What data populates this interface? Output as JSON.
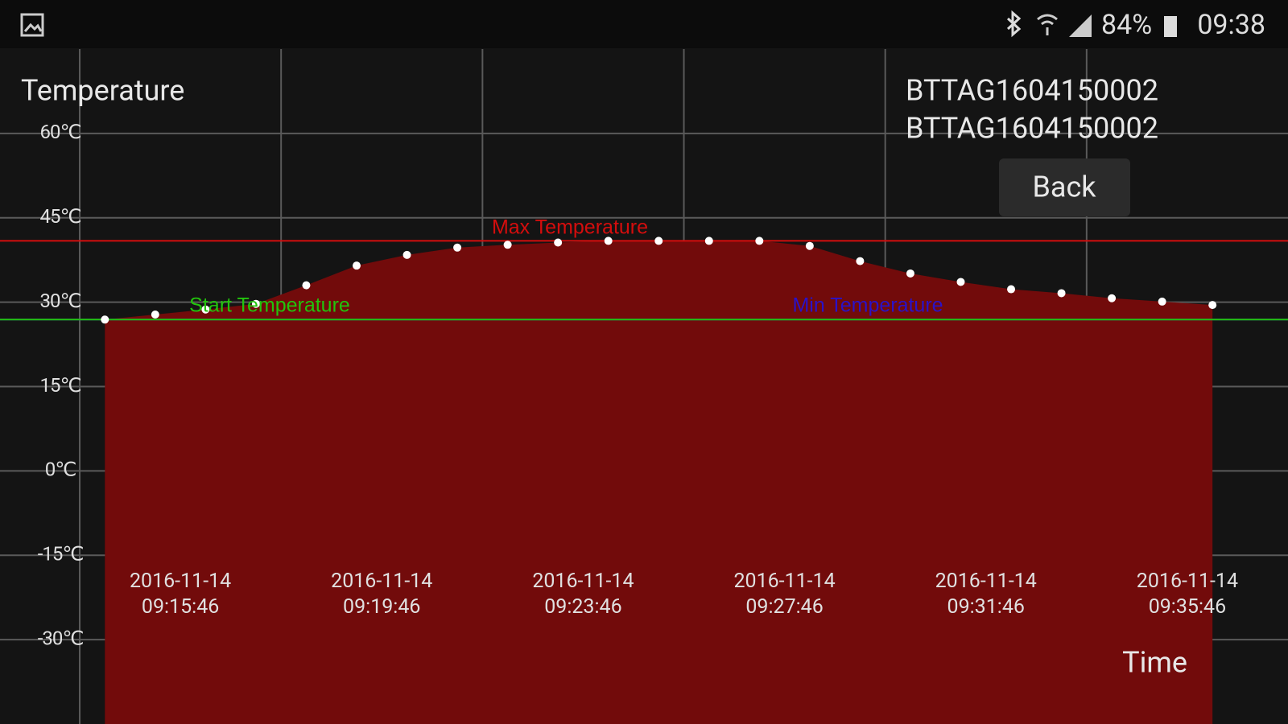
{
  "status_bar": {
    "battery": "84%",
    "time": "09:38"
  },
  "device_ids": [
    "BTTAG1604150002",
    "BTTAG1604150002"
  ],
  "back_button": "Back",
  "chart_data": {
    "type": "area",
    "y_label": "Temperature",
    "x_label": "Time",
    "x": [
      "2016-11-14 09:14:16",
      "2016-11-14 09:15:16",
      "2016-11-14 09:16:16",
      "2016-11-14 09:17:16",
      "2016-11-14 09:18:16",
      "2016-11-14 09:19:16",
      "2016-11-14 09:20:16",
      "2016-11-14 09:21:16",
      "2016-11-14 09:22:16",
      "2016-11-14 09:23:16",
      "2016-11-14 09:24:16",
      "2016-11-14 09:25:16",
      "2016-11-14 09:26:16",
      "2016-11-14 09:27:16",
      "2016-11-14 09:28:16",
      "2016-11-14 09:29:16",
      "2016-11-14 09:30:16",
      "2016-11-14 09:31:16",
      "2016-11-14 09:32:16",
      "2016-11-14 09:33:16",
      "2016-11-14 09:34:16",
      "2016-11-14 09:35:16",
      "2016-11-14 09:36:16"
    ],
    "series": [
      {
        "color": "#720b0b",
        "marker_color": "#ffffff",
        "values": [
          26.9,
          27.8,
          28.7,
          29.7,
          33.0,
          36.5,
          38.4,
          39.7,
          40.2,
          40.6,
          40.9,
          40.9,
          40.9,
          40.9,
          40.0,
          37.3,
          35.1,
          33.6,
          32.3,
          31.6,
          30.7,
          30.1,
          29.5
        ]
      }
    ],
    "reference_lines": [
      {
        "name": "Min Temperature",
        "value": 26.9,
        "color": "#2a12c8"
      },
      {
        "name": "Start Temperature",
        "value": 26.9,
        "color": "#22c40c"
      },
      {
        "name": "Max Temperature",
        "value": 40.9,
        "color": "#d40d0d"
      }
    ],
    "xlim": [
      "2016-11-14 09:12:11",
      "2016-11-14 09:37:46"
    ],
    "xticks": [
      "2016-11-14 09:15:46",
      "2016-11-14 09:19:46",
      "2016-11-14 09:23:46",
      "2016-11-14 09:27:46",
      "2016-11-14 09:31:46",
      "2016-11-14 09:35:46"
    ],
    "ylim": [
      -45,
      75
    ],
    "yticks": [
      {
        "value": 60,
        "label": "60℃"
      },
      {
        "value": 45,
        "label": "45℃"
      },
      {
        "value": 30,
        "label": "30℃"
      },
      {
        "value": 15,
        "label": "15℃"
      },
      {
        "value": 0,
        "label": "0℃"
      },
      {
        "value": -15,
        "label": "-15℃"
      },
      {
        "value": -30,
        "label": "-30℃"
      }
    ],
    "grid": true
  }
}
